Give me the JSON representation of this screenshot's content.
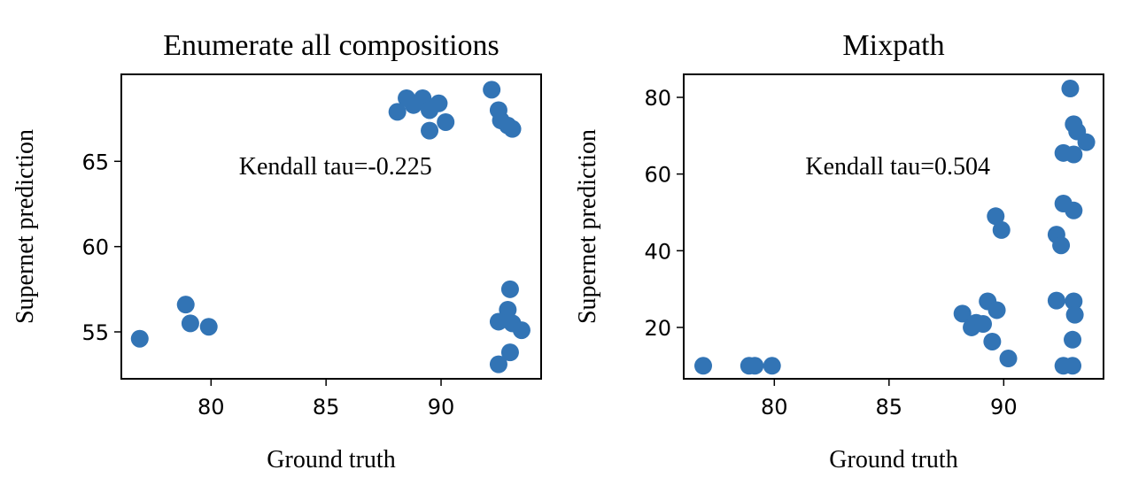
{
  "chart_data": [
    {
      "type": "scatter",
      "title": "Enumerate all compositions",
      "xlabel": "Ground truth",
      "ylabel": "Supernet prediction",
      "annotation": "Kendall tau=-0.225",
      "color": "#3274b5",
      "xlim": [
        76.1,
        94.35
      ],
      "ylim": [
        52.25,
        70.1
      ],
      "xticks": [
        80,
        85,
        90
      ],
      "yticks": [
        55,
        60,
        65
      ],
      "series": [
        {
          "name": null,
          "color": "#3274b5",
          "x": [
            76.9,
            78.9,
            79.1,
            79.9,
            88.1,
            88.5,
            88.8,
            89.2,
            89.5,
            89.9,
            89.5,
            90.2,
            92.2,
            92.5,
            92.6,
            92.9,
            93.1,
            93.0,
            92.9,
            92.5,
            93.1,
            93.5,
            93.0,
            92.5
          ],
          "values": [
            54.6,
            56.6,
            55.5,
            55.3,
            67.9,
            68.7,
            68.3,
            68.7,
            68.0,
            68.4,
            66.8,
            67.3,
            69.2,
            68.0,
            67.4,
            67.1,
            66.9,
            57.5,
            56.3,
            55.6,
            55.5,
            55.1,
            53.8,
            53.1
          ]
        }
      ]
    },
    {
      "type": "scatter",
      "title": "Mixpath",
      "xlabel": "Ground truth",
      "ylabel": "Supernet prediction",
      "annotation": "Kendall tau=0.504",
      "color": "#3274b5",
      "xlim": [
        76.05,
        94.35
      ],
      "ylim": [
        6.6,
        86.0
      ],
      "xticks": [
        80,
        85,
        90
      ],
      "yticks": [
        20,
        40,
        60,
        80
      ],
      "series": [
        {
          "name": null,
          "color": "#3274b5",
          "x": [
            76.9,
            78.9,
            79.15,
            79.9,
            88.2,
            88.6,
            88.8,
            89.1,
            89.3,
            89.5,
            89.7,
            89.65,
            89.9,
            90.2,
            92.9,
            93.05,
            93.2,
            93.6,
            92.6,
            93.05,
            92.6,
            93.05,
            92.3,
            92.5,
            92.3,
            93.05,
            93.1,
            93.0,
            92.6,
            93.0
          ],
          "values": [
            10,
            10,
            10,
            10,
            23.6,
            20,
            21.2,
            20.9,
            26.8,
            16.3,
            24.5,
            49.0,
            45.4,
            11.9,
            82.3,
            73,
            71.1,
            68.3,
            65.5,
            65.1,
            52.3,
            50.5,
            44.2,
            41.4,
            27,
            26.8,
            23.3,
            16.8,
            10,
            10
          ]
        }
      ]
    }
  ]
}
